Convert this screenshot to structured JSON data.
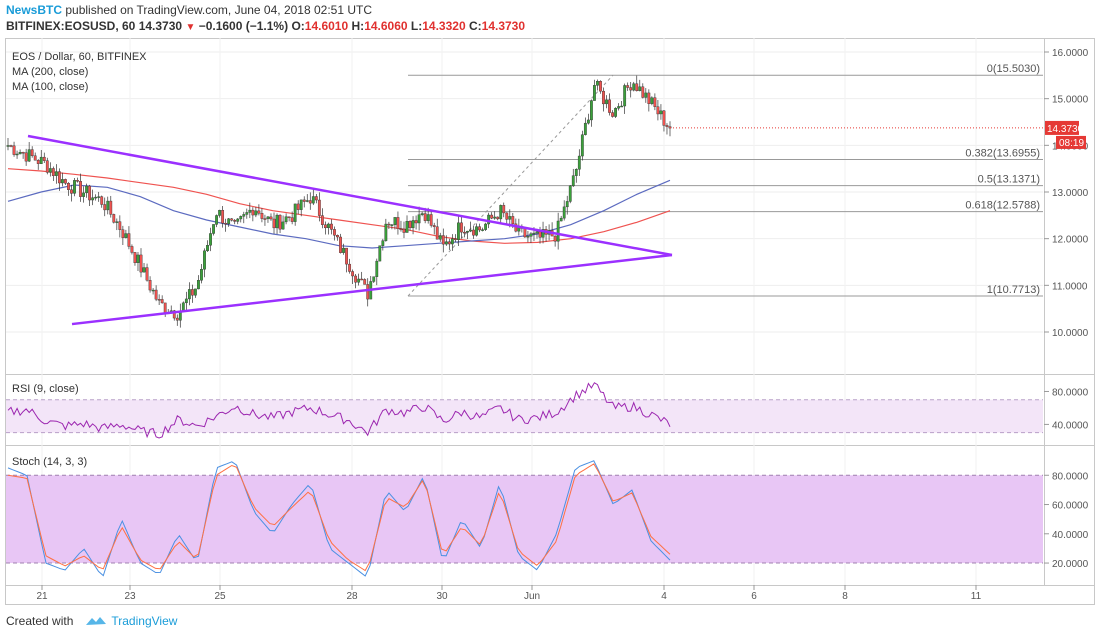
{
  "header": {
    "brand": "NewsBTC",
    "published_text": "published on TradingView.com, June 04, 2018 02:51 UTC",
    "symbol": "BITFINEX:EOSUSD, 60",
    "price": "14.3730",
    "change": "−0.1600 (−1.1%)",
    "o_label": "O:",
    "o_value": "14.6010",
    "h_label": "H:",
    "h_value": "14.6060",
    "l_label": "L:",
    "l_value": "14.3320",
    "c_label": "C:",
    "c_value": "14.3730"
  },
  "legend": {
    "title": "EOS / Dollar, 60, BITFINEX",
    "ma200": "MA (200, close)",
    "ma100": "MA (100, close)",
    "rsi": "RSI (9, close)",
    "stoch": "Stoch (14, 3, 3)"
  },
  "footer": {
    "created_with": "Created with",
    "tradingview": "TradingView"
  },
  "colors": {
    "up": "#26a69a",
    "up_candle": "#3aa13a",
    "down": "#ef5350",
    "triangle": "#9b30ff",
    "ma200": "#ef5350",
    "ma100": "#5c6bc0",
    "rsi_line": "#9c27b0",
    "stoch_k": "#4a90e2",
    "stoch_d": "#ff7043",
    "fib": "#999999",
    "price_tag": "#e53935"
  },
  "chart_data": [
    {
      "type": "candlestick",
      "title": "EOS / Dollar, 60, BITFINEX",
      "x_ticks": [
        "21",
        "23",
        "25",
        "28",
        "30",
        "Jun",
        "4",
        "6",
        "8",
        "11"
      ],
      "y_ticks": [
        "10.0000",
        "11.0000",
        "12.0000",
        "13.0000",
        "14.0000",
        "15.0000",
        "16.0000"
      ],
      "ylim": [
        9.1,
        16.3
      ],
      "last_price": "14.3730",
      "countdown": "08:19",
      "fib_levels": [
        {
          "label": "0(15.5030)",
          "value": 15.503
        },
        {
          "label": "0.382(13.6955)",
          "value": 13.6955
        },
        {
          "label": "0.5(13.1371)",
          "value": 13.1371
        },
        {
          "label": "0.618(12.5788)",
          "value": 12.5788
        },
        {
          "label": "1(10.7713)",
          "value": 10.7713
        }
      ],
      "key_prices": [
        14.0,
        13.8,
        13.6,
        13.2,
        13.0,
        12.8,
        12.2,
        11.4,
        10.6,
        10.4,
        11.0,
        12.6,
        12.2,
        12.7,
        12.3,
        12.5,
        12.9,
        12.2,
        11.5,
        10.8,
        12.4,
        12.3,
        12.6,
        11.8,
        12.3,
        12.2,
        12.6,
        12.1,
        12.0,
        12.1,
        13.4,
        15.3,
        14.7,
        15.4,
        14.9,
        14.37
      ],
      "series": [
        {
          "name": "MA (200, close)",
          "values": [
            13.5,
            13.45,
            13.38,
            13.3,
            13.2,
            13.1,
            12.95,
            12.75,
            12.6,
            12.5,
            12.4,
            12.3,
            12.2,
            12.05,
            11.95,
            11.9,
            11.92,
            12.0,
            12.15,
            12.35,
            12.6
          ]
        },
        {
          "name": "MA (100, close)",
          "values": [
            12.8,
            13.0,
            13.15,
            13.1,
            12.9,
            12.6,
            12.4,
            12.25,
            12.1,
            12.0,
            11.85,
            11.8,
            11.85,
            11.9,
            11.95,
            12.0,
            12.1,
            12.3,
            12.6,
            12.95,
            13.25
          ]
        }
      ]
    },
    {
      "type": "line",
      "title": "RSI (9, close)",
      "y_ticks": [
        "40.0000",
        "80.0000"
      ],
      "ylim": [
        15,
        100
      ],
      "band": [
        30,
        70
      ],
      "series": [
        {
          "name": "RSI",
          "values": [
            55,
            58,
            44,
            38,
            41,
            35,
            40,
            32,
            28,
            46,
            38,
            50,
            62,
            52,
            48,
            55,
            60,
            52,
            45,
            30,
            58,
            54,
            62,
            44,
            55,
            48,
            60,
            46,
            48,
            55,
            75,
            88,
            60,
            62,
            52,
            40
          ]
        }
      ]
    },
    {
      "type": "line",
      "title": "Stoch (14, 3, 3)",
      "y_ticks": [
        "20.0000",
        "40.0000",
        "60.0000",
        "80.0000"
      ],
      "ylim": [
        5,
        100
      ],
      "band": [
        20,
        80
      ],
      "series": [
        {
          "name": "%K",
          "values": [
            85,
            80,
            20,
            15,
            30,
            10,
            50,
            20,
            12,
            40,
            20,
            85,
            90,
            55,
            40,
            60,
            75,
            30,
            20,
            10,
            70,
            55,
            80,
            20,
            50,
            30,
            75,
            25,
            15,
            40,
            85,
            90,
            60,
            70,
            35,
            22
          ]
        },
        {
          "name": "%D",
          "values": [
            80,
            78,
            25,
            18,
            25,
            15,
            45,
            22,
            15,
            35,
            22,
            80,
            88,
            58,
            45,
            58,
            70,
            35,
            22,
            14,
            65,
            58,
            78,
            25,
            45,
            32,
            70,
            28,
            18,
            35,
            80,
            88,
            62,
            68,
            38,
            26
          ]
        }
      ]
    }
  ]
}
